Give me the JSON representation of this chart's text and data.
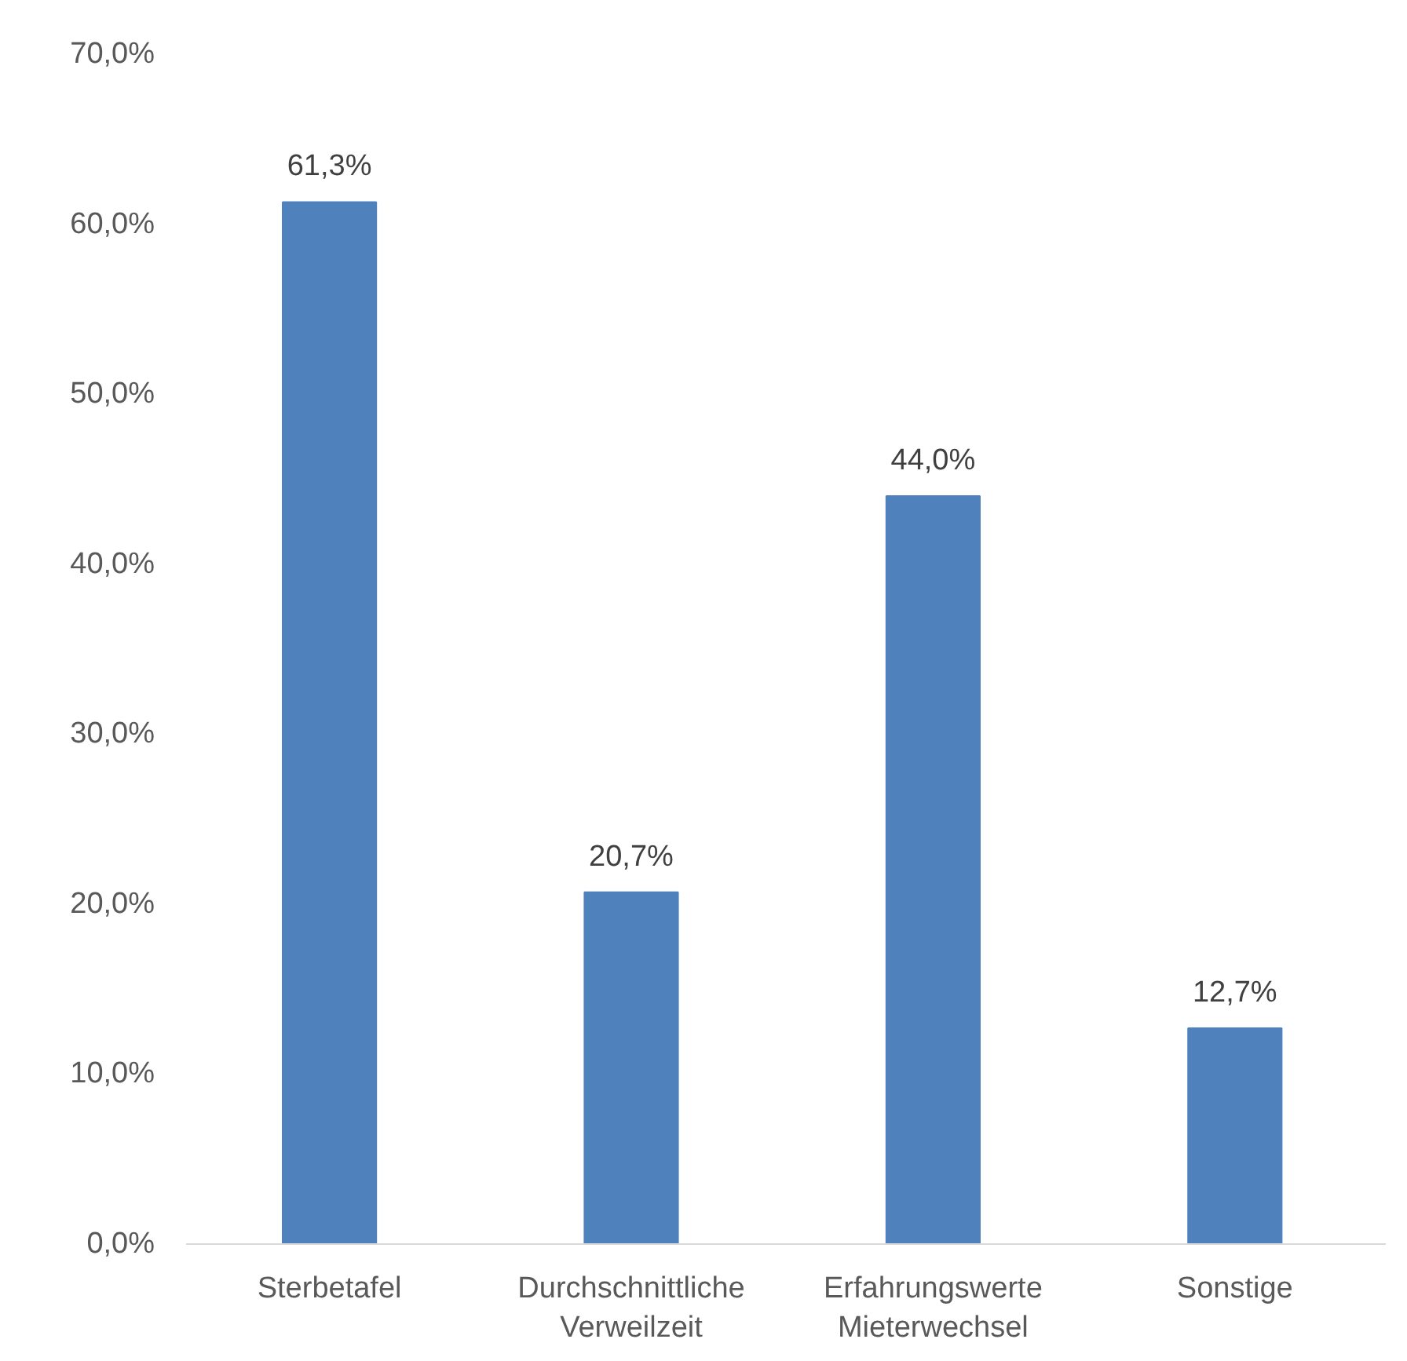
{
  "chart_data": {
    "type": "bar",
    "categories": [
      "Sterbetafel",
      "Durchschnittliche\nVerweilzeit",
      "Erfahrungswerte\nMieterwechsel",
      "Sonstige"
    ],
    "values": [
      61.3,
      20.7,
      44.0,
      12.7
    ],
    "value_labels": [
      "61,3%",
      "20,7%",
      "44,0%",
      "12,7%"
    ],
    "color": "#4f81bd",
    "ylim": [
      0,
      70
    ],
    "yticks": [
      {
        "value": 0,
        "label": "0,0%"
      },
      {
        "value": 10,
        "label": "10,0%"
      },
      {
        "value": 20,
        "label": "20,0%"
      },
      {
        "value": 30,
        "label": "30,0%"
      },
      {
        "value": 40,
        "label": "40,0%"
      },
      {
        "value": 50,
        "label": "50,0%"
      },
      {
        "value": 60,
        "label": "60,0%"
      },
      {
        "value": 70,
        "label": "70,0%"
      }
    ],
    "grid": false
  }
}
